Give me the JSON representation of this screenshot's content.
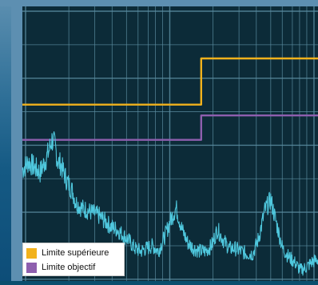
{
  "chart_data": {
    "type": "line",
    "title": "",
    "xlabel": "",
    "ylabel": "",
    "grid": true,
    "legend_position": "bottom-left",
    "xlim": [
      0,
      100
    ],
    "ylim": [
      0,
      100
    ],
    "colors": {
      "background": "#0c2b38",
      "grid": "#5a8ca0",
      "frame": "#5d8fb1"
    },
    "series": [
      {
        "name": "Limite supérieure",
        "color": "#f2b21c",
        "kind": "step",
        "x": [
          0,
          60.5,
          60.5,
          100
        ],
        "y": [
          65,
          65,
          82,
          82
        ]
      },
      {
        "name": "Limite objectif",
        "color": "#8e5fae",
        "kind": "step",
        "x": [
          0,
          60.5,
          60.5,
          100
        ],
        "y": [
          52,
          52,
          61,
          61
        ]
      },
      {
        "name": "",
        "color": "#4fc8de",
        "kind": "noisy",
        "x": [
          0,
          2,
          4,
          6,
          8,
          9,
          10,
          11,
          12,
          13,
          14,
          15,
          16,
          17,
          18,
          20,
          22,
          24,
          26,
          28,
          30,
          32,
          34,
          36,
          38,
          40,
          42,
          44,
          46,
          48,
          50,
          52,
          54,
          56,
          58,
          60,
          62,
          64,
          66,
          68,
          70,
          72,
          74,
          76,
          78,
          80,
          82,
          84,
          86,
          88,
          90,
          92,
          94,
          96,
          98,
          100
        ],
        "y": [
          41,
          44,
          42,
          40,
          45,
          48,
          52,
          50,
          44,
          43,
          40,
          37,
          35,
          33,
          29,
          27,
          26,
          25,
          24,
          22,
          20,
          19,
          17,
          15,
          12,
          11,
          12,
          13,
          11,
          16,
          22,
          27,
          19,
          14,
          12,
          11,
          11,
          13,
          19,
          15,
          12,
          12,
          11,
          10,
          10,
          16,
          26,
          30,
          21,
          12,
          9,
          7,
          4,
          5,
          7,
          8
        ]
      }
    ]
  }
}
